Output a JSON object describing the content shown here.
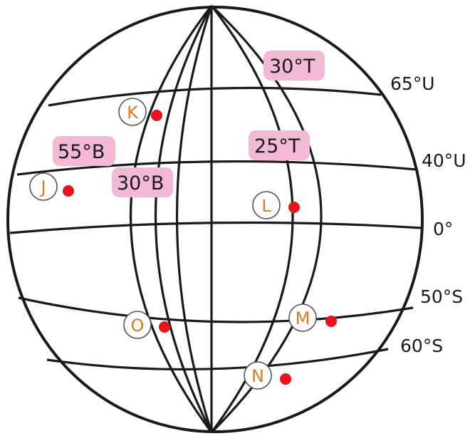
{
  "latitude_labels": {
    "lat_65N": "65°U",
    "lat_40N": "40°U",
    "equator": "0°",
    "lat_50S": "50°S",
    "lat_60S": "60°S"
  },
  "longitude_tags": {
    "lon_30E_top": "30°T",
    "lon_25E": "25°T",
    "lon_55W": "55°B",
    "lon_30W": "30°B"
  },
  "points": {
    "K": "K",
    "J": "J",
    "L": "L",
    "O": "O",
    "M": "M",
    "N": "N"
  },
  "colors": {
    "tag_background": "#f2b8d6",
    "point_label": "#e07a1f",
    "point_dot": "#e8141d"
  }
}
